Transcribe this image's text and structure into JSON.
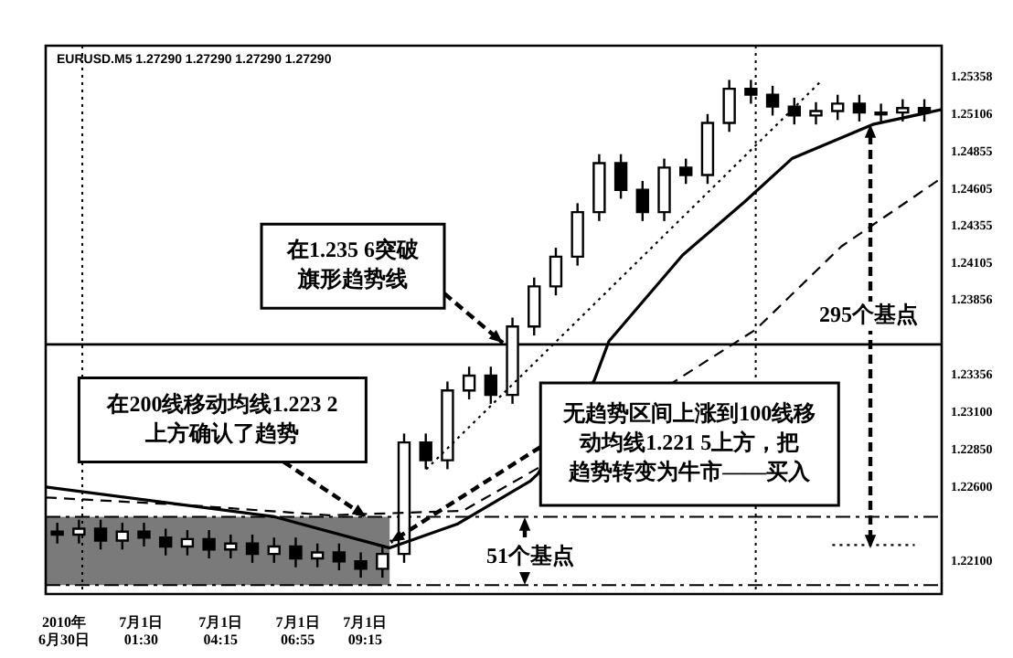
{
  "chart_data": {
    "type": "candlestick",
    "grid": false,
    "annotations": [
      "EURUSD.M5 1.27290 1.27290 1.27290 1.27290",
      {
        "text": "在1.235 6突破旗形趋势线",
        "x": "2010-07-01T14:01",
        "y": 1.2357
      },
      {
        "text": "在200线移动均线1.223 2上方确认了趋势",
        "x": "2010-07-01T09:17",
        "y": 1.224
      },
      {
        "text": "无趋势区间上涨到100线移动均线1.221 5上方，把趋势转变为牛市——买入",
        "x": "2010-07-01T10:08",
        "y": 1.2223
      },
      "295个基点",
      "51个基点"
    ],
    "x": [
      "2010-06-30T22:36",
      "2010-06-30T23:21",
      "2010-07-01T00:06",
      "2010-07-01T00:51",
      "2010-07-01T01:36",
      "2010-07-01T02:21",
      "2010-07-01T03:06",
      "2010-07-01T03:51",
      "2010-07-01T04:36",
      "2010-07-01T05:21",
      "2010-07-01T06:06",
      "2010-07-01T06:51",
      "2010-07-01T07:36",
      "2010-07-01T08:21",
      "2010-07-01T09:06",
      "2010-07-01T09:51",
      "2010-07-01T10:36",
      "2010-07-01T11:21",
      "2010-07-01T12:06",
      "2010-07-01T12:51",
      "2010-07-01T13:36",
      "2010-07-01T14:21",
      "2010-07-01T15:06",
      "2010-07-01T15:51",
      "2010-07-01T16:36",
      "2010-07-01T17:21",
      "2010-07-01T18:06",
      "2010-07-01T18:51",
      "2010-07-01T19:36",
      "2010-07-01T20:21",
      "2010-07-01T21:06",
      "2010-07-01T21:51",
      "2010-07-01T22:36",
      "2010-07-01T23:21",
      "2010-07-02T00:06",
      "2010-07-02T00:51",
      "2010-07-02T01:36",
      "2010-07-02T02:21",
      "2010-07-02T03:06",
      "2010-07-02T03:51",
      "2010-07-02T04:36"
    ],
    "ohlc": [
      [
        1.223,
        1.2236,
        1.2222,
        1.2228
      ],
      [
        1.2228,
        1.2238,
        1.2222,
        1.2232
      ],
      [
        1.2232,
        1.2238,
        1.2218,
        1.2224
      ],
      [
        1.2224,
        1.2236,
        1.2218,
        1.223
      ],
      [
        1.223,
        1.2236,
        1.222,
        1.2226
      ],
      [
        1.2226,
        1.2232,
        1.2214,
        1.222
      ],
      [
        1.222,
        1.2231,
        1.2214,
        1.2225
      ],
      [
        1.2225,
        1.2231,
        1.2212,
        1.2218
      ],
      [
        1.2218,
        1.2228,
        1.2212,
        1.2222
      ],
      [
        1.2222,
        1.2228,
        1.2209,
        1.2215
      ],
      [
        1.2215,
        1.2226,
        1.2209,
        1.222
      ],
      [
        1.222,
        1.2226,
        1.2206,
        1.2212
      ],
      [
        1.2212,
        1.2222,
        1.2206,
        1.2216
      ],
      [
        1.2216,
        1.2222,
        1.2204,
        1.221
      ],
      [
        1.221,
        1.2216,
        1.2199,
        1.2205
      ],
      [
        1.2205,
        1.2221,
        1.2199,
        1.2215
      ],
      [
        1.2215,
        1.2296,
        1.2209,
        1.229
      ],
      [
        1.229,
        1.2296,
        1.2272,
        1.2278
      ],
      [
        1.2278,
        1.2331,
        1.2272,
        1.2325
      ],
      [
        1.2325,
        1.2341,
        1.2319,
        1.2335
      ],
      [
        1.2335,
        1.2341,
        1.2316,
        1.2322
      ],
      [
        1.2322,
        1.2374,
        1.2316,
        1.2368
      ],
      [
        1.2368,
        1.2401,
        1.2362,
        1.2395
      ],
      [
        1.2395,
        1.2421,
        1.2389,
        1.2415
      ],
      [
        1.2415,
        1.2451,
        1.2409,
        1.2445
      ],
      [
        1.2445,
        1.2484,
        1.2439,
        1.2478
      ],
      [
        1.2478,
        1.2484,
        1.2454,
        1.246
      ],
      [
        1.246,
        1.2466,
        1.2439,
        1.2445
      ],
      [
        1.2445,
        1.2481,
        1.2439,
        1.2475
      ],
      [
        1.2475,
        1.2481,
        1.2464,
        1.247
      ],
      [
        1.247,
        1.2511,
        1.2464,
        1.2505
      ],
      [
        1.2505,
        1.2534,
        1.2499,
        1.2528
      ],
      [
        1.2528,
        1.2534,
        1.2518,
        1.2524
      ],
      [
        1.2524,
        1.253,
        1.251,
        1.2516
      ],
      [
        1.2516,
        1.2522,
        1.2504,
        1.251
      ],
      [
        1.251,
        1.2519,
        1.2504,
        1.2513
      ],
      [
        1.2513,
        1.2524,
        1.2507,
        1.2518
      ],
      [
        1.2518,
        1.2524,
        1.2506,
        1.2512
      ],
      [
        1.2512,
        1.2518,
        1.2506,
        1.2512
      ],
      [
        1.2512,
        1.2521,
        1.2506,
        1.2515
      ],
      [
        1.2515,
        1.2521,
        1.2506,
        1.2512
      ]
    ],
    "series": [
      {
        "type": "line",
        "color": "#000000",
        "line_style": "solid",
        "x": [
          "2010-06-30T22:12",
          "2010-07-01T06:07",
          "2010-07-01T10:06",
          "2010-07-01T12:26",
          "2010-07-01T14:58",
          "2010-07-01T15:14",
          "2010-07-01T17:11",
          "2010-07-01T17:41",
          "2010-07-01T20:14",
          "2010-07-01T22:23",
          "2010-07-02T00:01",
          "2010-07-02T02:49",
          "2010-07-02T05:12"
        ],
        "values": [
          1.226,
          1.224,
          1.2219,
          1.2235,
          1.2264,
          1.2269,
          1.2332,
          1.2358,
          1.2416,
          1.2452,
          1.2481,
          1.2504,
          1.2514
        ]
      },
      {
        "type": "line",
        "color": "#000000",
        "line_style": "dashed",
        "x": [
          "2010-06-30T22:12",
          "2010-07-01T02:57",
          "2010-07-01T08:01",
          "2010-07-01T12:38",
          "2010-07-01T15:10",
          "2010-07-01T20:02",
          "2010-07-01T22:46",
          "2010-07-02T01:44",
          "2010-07-02T05:12"
        ],
        "values": [
          1.2253,
          1.2248,
          1.2241,
          1.2244,
          1.2272,
          1.2332,
          1.2366,
          1.2422,
          1.2468
        ]
      },
      {
        "type": "line",
        "color": "#000000",
        "line_style": "dotted",
        "x": [
          "2010-07-01T11:22",
          "2010-07-02T00:58"
        ],
        "values": [
          1.2272,
          1.2532
        ]
      },
      {
        "type": "line",
        "color": "#000000",
        "line_style": "dotted",
        "x": [
          "2010-07-02T01:25",
          "2010-07-02T04:16"
        ],
        "values": [
          1.2221,
          1.2221
        ]
      }
    ],
    "ref_lines": [
      {
        "axis": "y",
        "value": 1.2356,
        "line_style": "solid",
        "color": "#000000"
      },
      {
        "axis": "y",
        "value": 1.224,
        "line_style": "dashed",
        "color": "#000000"
      },
      {
        "axis": "y",
        "value": 1.2194,
        "line_style": "dashed",
        "color": "#000000"
      },
      {
        "axis": "x",
        "value": "2010-06-30T23:28",
        "line_style": "dotted",
        "color": "#000000"
      },
      {
        "axis": "x",
        "value": "2010-07-01T22:46",
        "line_style": "dotted",
        "color": "#000000"
      }
    ],
    "bands": [
      {
        "axis": "x",
        "from": "2010-06-30T22:12",
        "to": "2010-07-01T10:06",
        "color": "#7a7a7a"
      }
    ],
    "xlim": [
      "2010-06-30T22:12",
      "2010-07-02T05:12"
    ],
    "xticks": [
      {
        "value": "2010-06-30T22:50",
        "label": "2010年\n6月30日"
      },
      {
        "value": "2010-07-01T01:30",
        "label": "7月1日\n01:30"
      },
      {
        "value": "2010-07-01T04:15",
        "label": "7月1日\n04:15"
      },
      {
        "value": "2010-07-01T06:55",
        "label": "7月1日\n06:55"
      },
      {
        "value": "2010-07-01T09:15",
        "label": "7月1日\n09:15"
      }
    ],
    "ylim": [
      1.2188,
      1.2557
    ],
    "yticks": [
      1.25358,
      1.25106,
      1.24855,
      1.24605,
      1.24355,
      1.24105,
      1.23856,
      1.23356,
      {
        "value": 1.231,
        "label": "1.23100"
      },
      {
        "value": 1.2285,
        "label": "1.22850"
      },
      {
        "value": 1.226,
        "label": "1.22600"
      },
      {
        "value": 1.221,
        "label": "1.22100"
      }
    ]
  }
}
